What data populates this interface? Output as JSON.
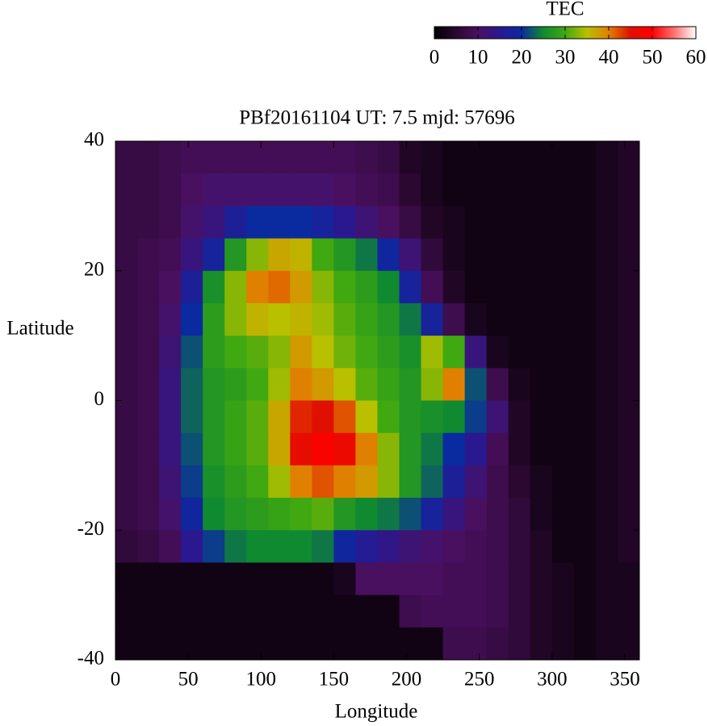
{
  "chart_data": {
    "type": "heatmap",
    "title": "PBf20161104  UT: 7.5  mjd: 57696",
    "xlabel": "Longitude",
    "ylabel": "Latitude",
    "x": [
      7.5,
      22.5,
      37.5,
      52.5,
      67.5,
      82.5,
      97.5,
      112.5,
      127.5,
      142.5,
      157.5,
      172.5,
      187.5,
      202.5,
      217.5,
      232.5,
      247.5,
      262.5,
      277.5,
      292.5,
      307.5,
      322.5,
      337.5,
      352.5
    ],
    "y": [
      37.5,
      32.5,
      27.5,
      22.5,
      17.5,
      12.5,
      7.5,
      2.5,
      -2.5,
      -7.5,
      -12.5,
      -17.5,
      -22.5,
      -27.5,
      -32.5,
      -37.5
    ],
    "z": [
      [
        7,
        7,
        8,
        9,
        9,
        9,
        9,
        9,
        9,
        9,
        9,
        8,
        7,
        4,
        3,
        2,
        2,
        2,
        2,
        2,
        2,
        2,
        3,
        4
      ],
      [
        7,
        7,
        8,
        10,
        11,
        11,
        11,
        11,
        11,
        11,
        10,
        9,
        8,
        5,
        3,
        2,
        2,
        2,
        2,
        2,
        2,
        2,
        3,
        4
      ],
      [
        7,
        7,
        8,
        11,
        13,
        17,
        20,
        20,
        20,
        18,
        15,
        12,
        10,
        7,
        4,
        3,
        2,
        2,
        2,
        2,
        2,
        2,
        3,
        4
      ],
      [
        7,
        8,
        9,
        13,
        18,
        27,
        33,
        37,
        36,
        30,
        27,
        24,
        19,
        12,
        6,
        3,
        2,
        2,
        2,
        2,
        2,
        2,
        3,
        4
      ],
      [
        7,
        8,
        10,
        17,
        26,
        33,
        40,
        41,
        38,
        33,
        30,
        28,
        25,
        18,
        9,
        4,
        2,
        2,
        2,
        2,
        2,
        2,
        3,
        4
      ],
      [
        7,
        8,
        11,
        20,
        28,
        33,
        36,
        35,
        36,
        34,
        31,
        29,
        27,
        24,
        18,
        8,
        3,
        2,
        2,
        2,
        2,
        2,
        3,
        4
      ],
      [
        7,
        8,
        12,
        22,
        28,
        30,
        31,
        33,
        38,
        35,
        32,
        30,
        28,
        26,
        34,
        30,
        13,
        3,
        2,
        2,
        2,
        2,
        3,
        4
      ],
      [
        7,
        8,
        13,
        23,
        27,
        28,
        30,
        34,
        40,
        38,
        35,
        31,
        29,
        27,
        33,
        40,
        22,
        8,
        3,
        2,
        2,
        2,
        3,
        4
      ],
      [
        7,
        8,
        13,
        23,
        27,
        29,
        31,
        37,
        44,
        45,
        42,
        35,
        30,
        27,
        26,
        25,
        21,
        12,
        4,
        2,
        2,
        2,
        3,
        4
      ],
      [
        7,
        8,
        13,
        22,
        27,
        29,
        31,
        37,
        46,
        49,
        47,
        40,
        33,
        27,
        24,
        20,
        15,
        9,
        4,
        2,
        2,
        2,
        3,
        4
      ],
      [
        7,
        8,
        12,
        21,
        26,
        28,
        30,
        34,
        40,
        42,
        40,
        38,
        33,
        27,
        23,
        17,
        12,
        8,
        5,
        3,
        2,
        2,
        3,
        4
      ],
      [
        7,
        8,
        11,
        19,
        25,
        27,
        28,
        29,
        30,
        31,
        27,
        25,
        24,
        22,
        18,
        13,
        10,
        8,
        6,
        3,
        2,
        2,
        3,
        4
      ],
      [
        6,
        7,
        9,
        15,
        21,
        24,
        25,
        25,
        25,
        24,
        19,
        16,
        14,
        12,
        11,
        10,
        9,
        8,
        6,
        4,
        2,
        2,
        3,
        4
      ],
      [
        2,
        2,
        2,
        2,
        2,
        2,
        2,
        2,
        2,
        2,
        3,
        10,
        10,
        10,
        10,
        9,
        9,
        8,
        6,
        4,
        3,
        2,
        3,
        3
      ],
      [
        2,
        2,
        2,
        2,
        2,
        2,
        2,
        2,
        2,
        2,
        2,
        2,
        2,
        8,
        9,
        9,
        9,
        8,
        6,
        4,
        3,
        2,
        3,
        3
      ],
      [
        2,
        2,
        2,
        2,
        2,
        2,
        2,
        2,
        2,
        2,
        2,
        2,
        2,
        2,
        2,
        8,
        8,
        7,
        6,
        4,
        3,
        2,
        3,
        3
      ]
    ],
    "xlim": [
      0,
      360
    ],
    "ylim": [
      -40,
      40
    ],
    "xticks": [
      0,
      50,
      100,
      150,
      200,
      250,
      300,
      350
    ],
    "yticks": [
      -40,
      -20,
      0,
      20,
      40
    ],
    "colorbar": {
      "label": "TEC",
      "lim": [
        0,
        60
      ],
      "ticks": [
        0,
        10,
        20,
        30,
        40,
        50,
        60
      ],
      "colors": [
        "#000000",
        "#2a0830",
        "#4a1060",
        "#2a1890",
        "#0a2aa0",
        "#108a30",
        "#40a810",
        "#b8c000",
        "#e08000",
        "#e01000",
        "#ff0000",
        "#ff7070",
        "#ffffff"
      ]
    }
  }
}
